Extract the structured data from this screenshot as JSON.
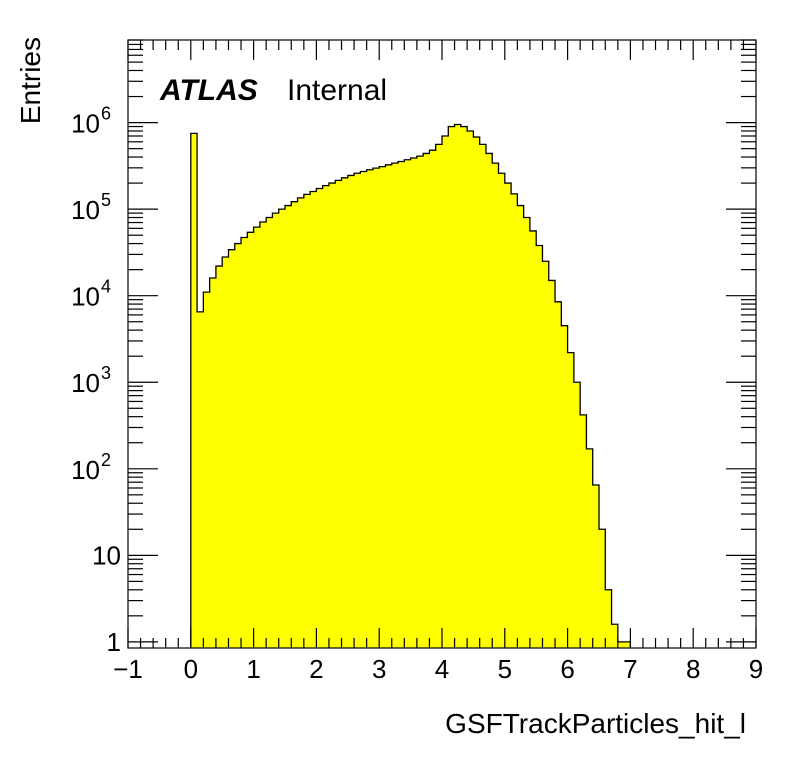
{
  "chart_data": {
    "type": "bar",
    "xlabel": "GSFTrackParticles_hit_l",
    "ylabel": "Entries",
    "xlim": [
      -1,
      9
    ],
    "ylim": [
      0.85,
      9000000
    ],
    "yscale": "log",
    "bar_color": "#ffff00",
    "grid": false,
    "annotation": {
      "experiment": "ATLAS",
      "status": "Internal"
    },
    "x_tick_labels": [
      "−1",
      "0",
      "1",
      "2",
      "3",
      "4",
      "5",
      "6",
      "7",
      "8",
      "9"
    ],
    "y_tick_labels": [
      {
        "base": "1",
        "exp": ""
      },
      {
        "base": "10",
        "exp": ""
      },
      {
        "base": "10",
        "exp": "2"
      },
      {
        "base": "10",
        "exp": "3"
      },
      {
        "base": "10",
        "exp": "4"
      },
      {
        "base": "10",
        "exp": "5"
      },
      {
        "base": "10",
        "exp": "6"
      }
    ],
    "bins": {
      "x0": 0,
      "width": 0.1,
      "values": [
        750000,
        6500,
        11000,
        16000,
        22000,
        28000,
        34000,
        40000,
        47000,
        54000,
        62000,
        71000,
        80000,
        90000,
        100000,
        110000,
        122000,
        135000,
        148000,
        160000,
        173000,
        187000,
        200000,
        215000,
        230000,
        245000,
        260000,
        272000,
        285000,
        298000,
        310000,
        325000,
        340000,
        355000,
        372000,
        390000,
        410000,
        440000,
        480000,
        560000,
        700000,
        900000,
        950000,
        900000,
        800000,
        680000,
        560000,
        440000,
        340000,
        260000,
        200000,
        150000,
        110000,
        80000,
        56000,
        38000,
        25000,
        15000,
        8500,
        4500,
        2200,
        1000,
        420,
        170,
        65,
        20,
        4,
        1.6,
        1,
        1,
        0,
        0,
        0,
        0,
        0,
        0,
        0,
        0,
        0,
        0
      ]
    }
  }
}
